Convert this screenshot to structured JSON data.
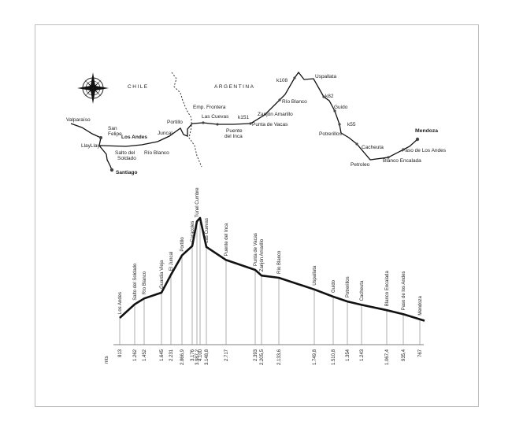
{
  "map": {
    "countries": {
      "left": "CHILE",
      "right": "ARGENTINA"
    },
    "places": {
      "valparaiso": "Valparaíso",
      "san_felipe": "San\nFelipe",
      "llaylay": "LlayLlay",
      "los_andes": "Los Andes",
      "salto_del_soldado": "Salto del\nSoldado",
      "santiago": "Santiago",
      "juncal": "Juncal",
      "rio_blanco_cl": "Río Blanco",
      "portillo": "Portillo",
      "emp_frontera": "Emp. Frontera",
      "las_cuevas": "Las Cuevas",
      "puente_del_inca": "Puente\ndel Inca",
      "k151": "k151",
      "punta_de_vacas": "Punta de Vacas",
      "zanjon_amarillo": "Zanjón Amarillo",
      "rio_blanco_ar": "Río Blanco",
      "k108": "k108",
      "uspallata": "Uspallata",
      "k82": "k82",
      "guido": "Guido",
      "k55": "k55",
      "potrerillos": "Potrerillos",
      "cacheuta": "Cacheuta",
      "petroleo": "Petroleo",
      "blanco_encalada": "Blanco Encalada",
      "paso_de_los_andes": "Paso de Los Andes",
      "mendoza": "Mendoza"
    }
  },
  "profile": {
    "unit": "mts",
    "stations": [
      {
        "name": "Los Andes",
        "alt": "813",
        "v": 813
      },
      {
        "name": "Salto del Soldado",
        "alt": "1.262",
        "v": 1262
      },
      {
        "name": "Río Blanco",
        "alt": "1.452",
        "v": 1452
      },
      {
        "name": "Guardia Vieja",
        "alt": "1.645",
        "v": 1645
      },
      {
        "name": "El Juncal",
        "alt": "2.231",
        "v": 2231
      },
      {
        "name": "Portillo",
        "alt": "2.866,9",
        "v": 2866.9
      },
      {
        "name": "Caracoles",
        "alt": "3.176",
        "v": 3176
      },
      {
        "name": "Túnel Cumbre",
        "alt": "3.987,2",
        "v": 3987.2
      },
      {
        "name": "",
        "alt": "4.100",
        "v": 4100
      },
      {
        "name": "Las Cuevas",
        "alt": "3.148,8",
        "v": 3148.8
      },
      {
        "name": "Puente del Inca",
        "alt": "2.717",
        "v": 2717
      },
      {
        "name": "Punta de Vacas",
        "alt": "2.393",
        "v": 2393
      },
      {
        "name": "Zanjón Amarillo",
        "alt": "2.205,5",
        "v": 2205.5
      },
      {
        "name": "Río Blanco",
        "alt": "2.133,6",
        "v": 2133.6
      },
      {
        "name": "Uspallata",
        "alt": "1.749,8",
        "v": 1749.8
      },
      {
        "name": "Guido",
        "alt": "1.510,8",
        "v": 1510.8
      },
      {
        "name": "Potrerillos",
        "alt": "1.354",
        "v": 1354
      },
      {
        "name": "Cacheuta",
        "alt": "1.243",
        "v": 1243
      },
      {
        "name": "Blanco Encalada",
        "alt": "1.067,4",
        "v": 1067.4
      },
      {
        "name": "Paso de los Andes",
        "alt": "935,4",
        "v": 935.4
      },
      {
        "name": "Mendoza",
        "alt": "767",
        "v": 767
      }
    ]
  }
}
